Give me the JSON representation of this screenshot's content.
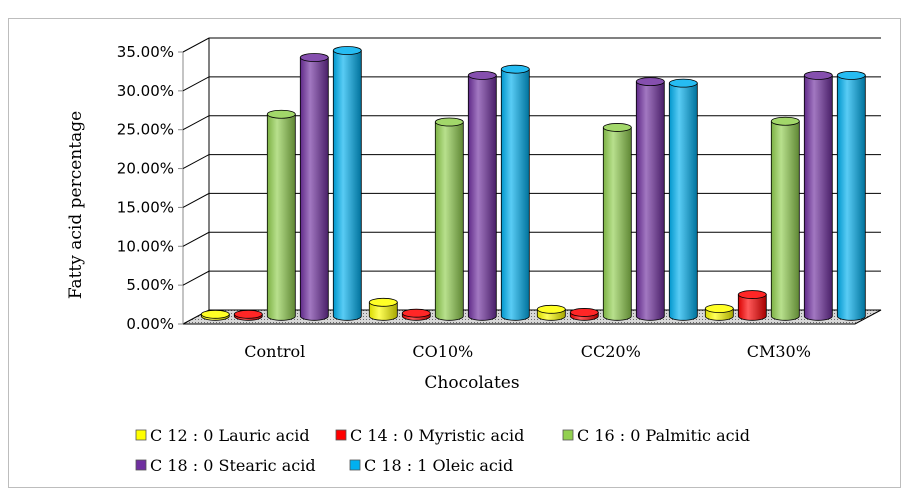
{
  "chart_data": {
    "type": "bar",
    "categories": [
      "Control",
      "CO10%",
      "CC20%",
      "CM30%"
    ],
    "series": [
      {
        "name": "C 12 : 0 Lauric acid",
        "values": [
          0.0,
          1.8,
          0.9,
          1.0
        ],
        "color": "#ffff00"
      },
      {
        "name": "C 14 : 0 Myristic acid",
        "values": [
          0.1,
          0.4,
          0.5,
          2.8
        ],
        "color": "#ff0000"
      },
      {
        "name": "C 16 : 0 Palmitic acid",
        "values": [
          26.0,
          25.0,
          24.3,
          25.1
        ],
        "color": "#92d050"
      },
      {
        "name": "C 18 : 0 Stearic acid",
        "values": [
          33.3,
          31.0,
          30.2,
          31.0
        ],
        "color": "#7030a0"
      },
      {
        "name": "C 18 : 1 Oleic acid",
        "values": [
          34.2,
          31.8,
          30.0,
          31.0
        ],
        "color": "#00b0f0"
      }
    ],
    "yticks": [
      "0.00%",
      "5.00%",
      "10.00%",
      "15.00%",
      "20.00%",
      "25.00%",
      "30.00%",
      "35.00%"
    ],
    "ylim": [
      0,
      35
    ],
    "xlabel": "Chocolates",
    "ylabel": "Fatty acid percentage",
    "grid": true,
    "legend_position": "bottom",
    "chart_style": "3d-clustered-cylinder",
    "floor_color": "#dedede",
    "grid_color": "#000000"
  }
}
